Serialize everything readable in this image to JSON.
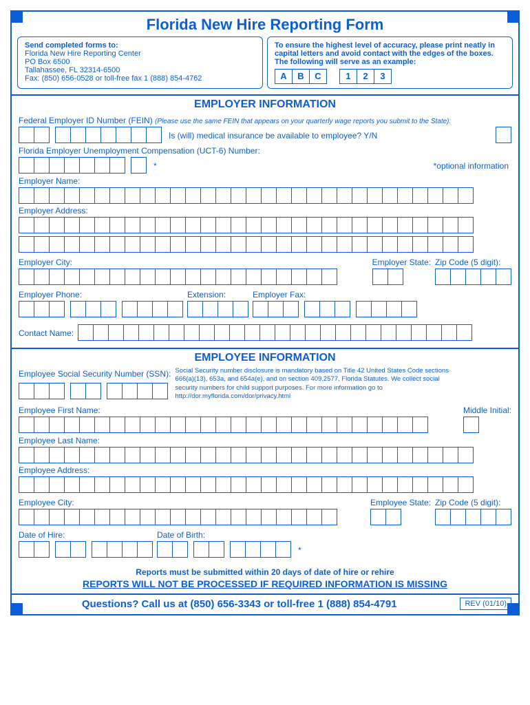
{
  "title": "Florida New Hire Reporting Form",
  "send": {
    "heading": "Send completed forms to:",
    "l1": "Florida New Hire Reporting Center",
    "l2": "PO Box 6500",
    "l3": "Tallahassee, FL  32314-6500",
    "l4": "Fax: (850) 656-0528 or toll-free fax 1 (888) 854-4762"
  },
  "accuracy": {
    "l1": "To ensure the highest level of accuracy, please print neatly in capital letters and avoid contact with the edges of the boxes. The following will serve as an example:",
    "exA": "A",
    "exB": "B",
    "exC": "C",
    "ex1": "1",
    "ex2": "2",
    "ex3": "3"
  },
  "employer": {
    "heading": "EMPLOYER INFORMATION",
    "fein_label": "Federal Employer ID Number (FEIN)",
    "fein_note": "(Please use the same FEIN that appears on your quarterly wage reports you submit to the State):",
    "med_q": "Is (will) medical insurance be available to employee?  Y/N",
    "uct_label": "Florida Employer Unemployment Compensation (UCT-6) Number:",
    "optional": "*optional information",
    "star": "*",
    "name": "Employer Name:",
    "addr": "Employer Address:",
    "city": "Employer City:",
    "state": "Employer State:",
    "zip": "Zip Code (5 digit):",
    "phone": "Employer Phone:",
    "ext": "Extension:",
    "fax": "Employer Fax:",
    "contact": "Contact Name:"
  },
  "employee": {
    "heading": "EMPLOYEE INFORMATION",
    "ssn": "Employee Social Security Number (SSN):",
    "ssn_note": "Social Security number disclosure is mandatory based on Title 42 United States Code sections 666(a)(13), 653a, and 654a(e), and on section 409.2577, Florida Statutes.  We collect social security numbers for child support purposes.  For more information go to http://dor.myflorida.com/dor/privacy.html",
    "first": "Employee First Name:",
    "mi": "Middle Initial:",
    "last": "Employee Last Name:",
    "addr": "Employee Address:",
    "city": "Employee City:",
    "state": "Employee State:",
    "zip": "Zip Code (5 digit):",
    "doh": "Date of Hire:",
    "dob": "Date of Birth:",
    "star": "*"
  },
  "footer": {
    "submit": "Reports must be submitted within 20 days of date of hire or rehire",
    "warn": "REPORTS WILL NOT BE PROCESSED IF REQUIRED INFORMATION IS MISSING",
    "questions": "Questions?  Call us at (850) 656-3343 or toll-free 1 (888) 854-4791",
    "rev": "REV (01/10)"
  }
}
